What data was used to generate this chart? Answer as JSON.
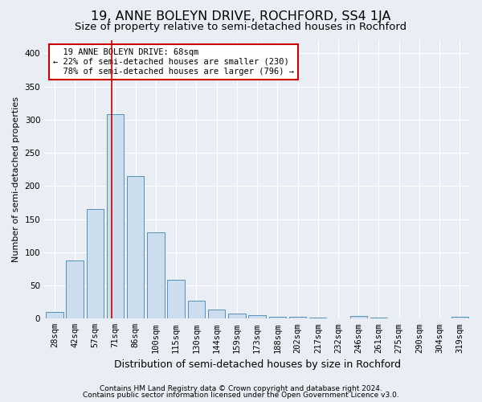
{
  "title": "19, ANNE BOLEYN DRIVE, ROCHFORD, SS4 1JA",
  "subtitle": "Size of property relative to semi-detached houses in Rochford",
  "xlabel": "Distribution of semi-detached houses by size in Rochford",
  "ylabel": "Number of semi-detached properties",
  "categories": [
    "28sqm",
    "42sqm",
    "57sqm",
    "71sqm",
    "86sqm",
    "100sqm",
    "115sqm",
    "130sqm",
    "144sqm",
    "159sqm",
    "173sqm",
    "188sqm",
    "202sqm",
    "217sqm",
    "232sqm",
    "246sqm",
    "261sqm",
    "275sqm",
    "290sqm",
    "304sqm",
    "319sqm"
  ],
  "values": [
    10,
    88,
    165,
    308,
    215,
    130,
    58,
    27,
    14,
    8,
    5,
    3,
    3,
    1,
    0,
    4,
    1,
    0,
    0,
    0,
    3
  ],
  "bar_color": "#ccdded",
  "bar_edge_color": "#5590bb",
  "vline_x_idx": 2.82,
  "vline_color": "#cc0000",
  "annotation_text": "  19 ANNE BOLEYN DRIVE: 68sqm\n← 22% of semi-detached houses are smaller (230)\n  78% of semi-detached houses are larger (796) →",
  "annotation_box_facecolor": "#ffffff",
  "annotation_box_edgecolor": "#cc0000",
  "ylim": [
    0,
    420
  ],
  "yticks": [
    0,
    50,
    100,
    150,
    200,
    250,
    300,
    350,
    400
  ],
  "footer1": "Contains HM Land Registry data © Crown copyright and database right 2024.",
  "footer2": "Contains public sector information licensed under the Open Government Licence v3.0.",
  "background_color": "#e8eef4",
  "plot_bg_color": "#e8eef4",
  "grid_color": "#ffffff",
  "title_fontsize": 11.5,
  "subtitle_fontsize": 9.5,
  "xlabel_fontsize": 9,
  "ylabel_fontsize": 8,
  "tick_fontsize": 7.5,
  "annotation_fontsize": 7.5,
  "footer_fontsize": 6.5
}
